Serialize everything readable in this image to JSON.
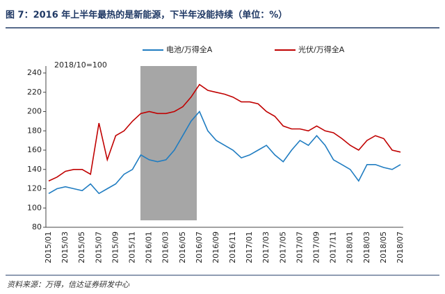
{
  "chart_data": {
    "type": "line",
    "title": "图 7：2016 年上半年最热的是新能源，下半年没能持续（单位：%）",
    "annotation": "2018/10=100",
    "source": "资料来源：万得，信达证券研发中心",
    "categories": [
      "2015/01",
      null,
      "2015/03",
      null,
      "2015/05",
      null,
      "2015/07",
      null,
      "2015/09",
      null,
      "2015/11",
      null,
      "2016/01",
      null,
      "2016/03",
      null,
      "2016/05",
      null,
      "2016/07",
      null,
      "2016/09",
      null,
      "2016/11",
      null,
      "2017/01",
      null,
      "2017/03",
      null,
      "2017/05",
      null,
      "2017/07",
      null,
      "2017/09",
      null,
      "2017/11",
      null,
      "2018/01",
      null,
      "2018/03",
      null,
      "2018/05",
      null,
      "2018/07"
    ],
    "series": [
      {
        "name": "电池/万得全A",
        "color": "#1f7cc1",
        "values": [
          115,
          120,
          122,
          120,
          118,
          125,
          115,
          120,
          125,
          135,
          140,
          155,
          150,
          148,
          150,
          160,
          175,
          190,
          200,
          180,
          170,
          165,
          160,
          152,
          155,
          160,
          165,
          155,
          148,
          160,
          170,
          165,
          175,
          165,
          150,
          145,
          140,
          128,
          145,
          145,
          142,
          140,
          145
        ]
      },
      {
        "name": "光伏/万得全A",
        "color": "#c00000",
        "values": [
          128,
          132,
          138,
          140,
          140,
          135,
          188,
          150,
          175,
          180,
          190,
          198,
          200,
          198,
          198,
          200,
          205,
          215,
          228,
          222,
          220,
          218,
          215,
          210,
          210,
          208,
          200,
          195,
          185,
          182,
          182,
          180,
          185,
          180,
          178,
          172,
          165,
          160,
          170,
          175,
          172,
          160,
          158
        ]
      }
    ],
    "ylim": [
      80,
      240
    ],
    "yticks": [
      80,
      100,
      120,
      140,
      160,
      180,
      200,
      220,
      240
    ],
    "grid": false
  }
}
